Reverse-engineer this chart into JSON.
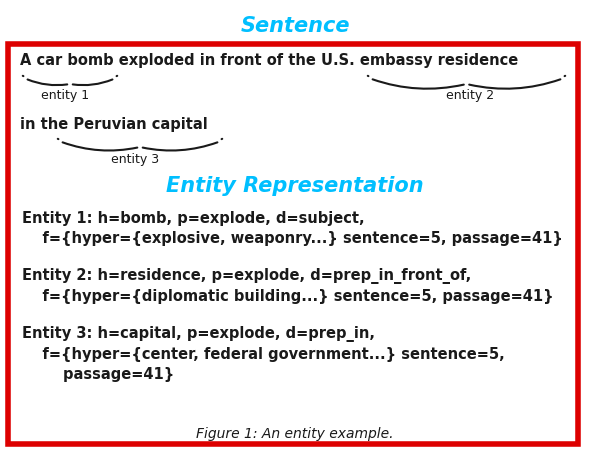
{
  "title_sentence": "Sentence",
  "title_entity": "Entity Representation",
  "sentence_line1": "A car bomb exploded in front of the U.S. embassy residence",
  "sentence_line2": "in the Peruvian capital",
  "entity1_label": "entity 1",
  "entity2_label": "entity 2",
  "entity3_label": "entity 3",
  "entity1_line1": "Entity 1: h=bomb, p=explode, d=subject,",
  "entity1_line2": "    f={hyper={explosive, weaponry...} sentence=5, passage=41}",
  "entity2_line1": "Entity 2: h=residence, p=explode, d=prep_in_front_of,",
  "entity2_line2": "    f={hyper={diplomatic building...} sentence=5, passage=41}",
  "entity3_line1": "Entity 3: h=capital, p=explode, d=prep_in,",
  "entity3_line2": "    f={hyper={center, federal government...} sentence=5,",
  "entity3_line3": "        passage=41}",
  "cyan_color": "#00BFFF",
  "black_color": "#1a1a1a",
  "red_border": "#DD0000",
  "bg_color": "#FFFFFF",
  "figure_caption": "Figure 1: An entity example.",
  "body_fontsize": 10.5,
  "title_fontsize": 15,
  "label_fontsize": 9
}
